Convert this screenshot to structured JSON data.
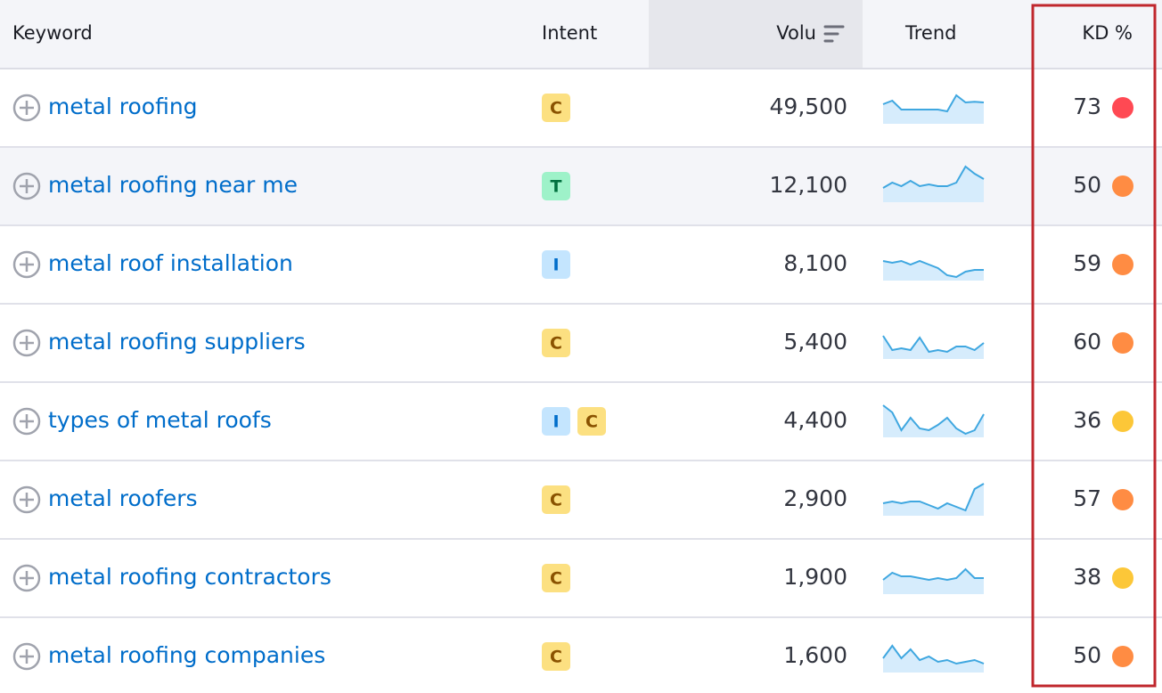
{
  "header": {
    "keyword": "Keyword",
    "intent": "Intent",
    "volume": "Volu",
    "trend": "Trend",
    "kd": "KD %"
  },
  "rows": [
    {
      "keyword": "metal roofing",
      "intents": [
        "C"
      ],
      "volume": "49,500",
      "trend": [
        55,
        65,
        40,
        40,
        40,
        40,
        40,
        35,
        80,
        60,
        62,
        60
      ],
      "kd": 73,
      "kd_color": "#ff4953"
    },
    {
      "keyword": "metal roofing near me",
      "intents": [
        "T"
      ],
      "volume": "12,100",
      "trend": [
        40,
        55,
        45,
        60,
        45,
        50,
        45,
        45,
        55,
        100,
        80,
        65
      ],
      "kd": 50,
      "kd_color": "#ff8c43"
    },
    {
      "keyword": "metal roof installation",
      "intents": [
        "I"
      ],
      "volume": "8,100",
      "trend": [
        55,
        50,
        55,
        45,
        55,
        45,
        35,
        15,
        10,
        25,
        30,
        30
      ],
      "kd": 59,
      "kd_color": "#ff8c43"
    },
    {
      "keyword": "metal roofing suppliers",
      "intents": [
        "C"
      ],
      "volume": "5,400",
      "trend": [
        65,
        25,
        30,
        25,
        60,
        20,
        25,
        20,
        35,
        35,
        25,
        45
      ],
      "kd": 60,
      "kd_color": "#ff8c43"
    },
    {
      "keyword": "types of metal roofs",
      "intents": [
        "I",
        "C"
      ],
      "volume": "4,400",
      "trend": [
        90,
        70,
        20,
        55,
        25,
        20,
        35,
        55,
        25,
        10,
        20,
        65
      ],
      "kd": 36,
      "kd_color": "#fcc738"
    },
    {
      "keyword": "metal roofers",
      "intents": [
        "C"
      ],
      "volume": "2,900",
      "trend": [
        35,
        40,
        35,
        40,
        40,
        30,
        20,
        35,
        25,
        15,
        75,
        90
      ],
      "kd": 57,
      "kd_color": "#ff8c43"
    },
    {
      "keyword": "metal roofing contractors",
      "intents": [
        "C"
      ],
      "volume": "1,900",
      "trend": [
        40,
        60,
        50,
        50,
        45,
        40,
        45,
        40,
        45,
        70,
        45,
        45
      ],
      "kd": 38,
      "kd_color": "#fcc738"
    },
    {
      "keyword": "metal roofing companies",
      "intents": [
        "C"
      ],
      "volume": "1,600",
      "trend": [
        40,
        75,
        40,
        65,
        35,
        45,
        30,
        35,
        25,
        30,
        35,
        25
      ],
      "kd": 50,
      "kd_color": "#ff8c43"
    }
  ]
}
